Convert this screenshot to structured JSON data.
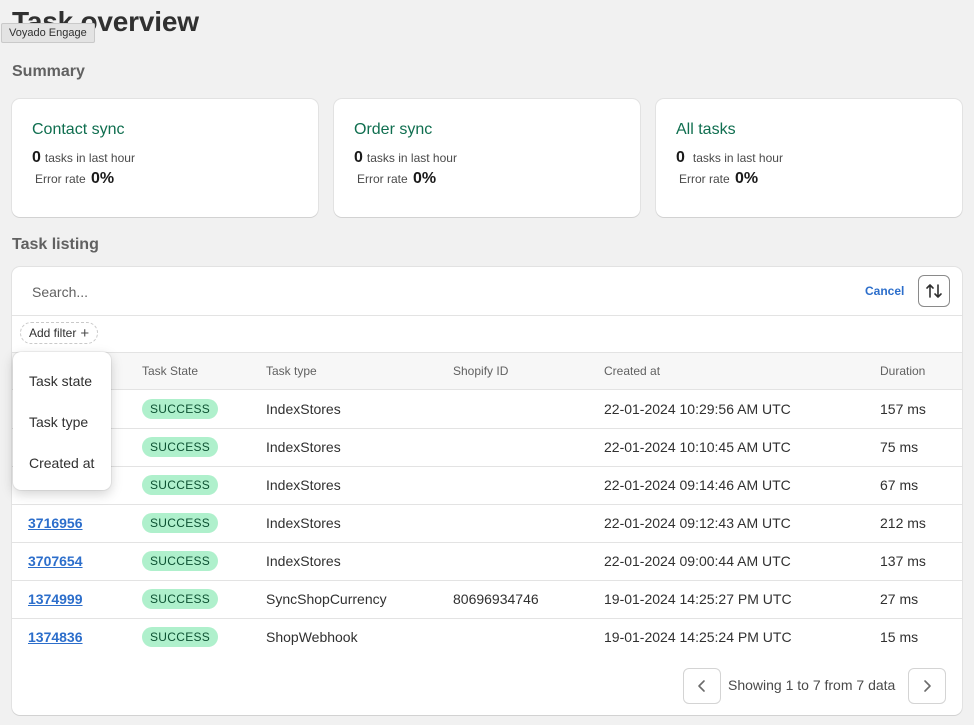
{
  "page": {
    "title": "Task overview",
    "tooltip": "Voyado Engage"
  },
  "summary": {
    "title": "Summary",
    "cards": [
      {
        "title": "Contact sync",
        "count": "0",
        "count_label": "tasks in last hour",
        "error_label": "Error rate",
        "error_value": "0%"
      },
      {
        "title": "Order sync",
        "count": "0",
        "count_label": "tasks in last hour",
        "error_label": "Error rate",
        "error_value": "0%"
      },
      {
        "title": "All tasks",
        "count": "0",
        "count_label": "tasks in last hour",
        "error_label": "Error rate",
        "error_value": "0%"
      }
    ]
  },
  "listing": {
    "title": "Task listing",
    "search_placeholder": "Search...",
    "cancel_label": "Cancel",
    "add_filter_label": "Add filter",
    "columns": {
      "state": "Task State",
      "type": "Task type",
      "shopify_id": "Shopify ID",
      "created": "Created at",
      "duration": "Duration"
    },
    "rows": [
      {
        "id": "",
        "state": "SUCCESS",
        "type": "IndexStores",
        "shopify_id": "",
        "created": "22-01-2024 10:29:56 AM UTC",
        "duration": "157 ms"
      },
      {
        "id": "",
        "state": "SUCCESS",
        "type": "IndexStores",
        "shopify_id": "",
        "created": "22-01-2024 10:10:45 AM UTC",
        "duration": "75 ms"
      },
      {
        "id": "",
        "state": "SUCCESS",
        "type": "IndexStores",
        "shopify_id": "",
        "created": "22-01-2024 09:14:46 AM UTC",
        "duration": "67 ms"
      },
      {
        "id": "3716956",
        "state": "SUCCESS",
        "type": "IndexStores",
        "shopify_id": "",
        "created": "22-01-2024 09:12:43 AM UTC",
        "duration": "212 ms"
      },
      {
        "id": "3707654",
        "state": "SUCCESS",
        "type": "IndexStores",
        "shopify_id": "",
        "created": "22-01-2024 09:00:44 AM UTC",
        "duration": "137 ms"
      },
      {
        "id": "1374999",
        "state": "SUCCESS",
        "type": "SyncShopCurrency",
        "shopify_id": "80696934746",
        "created": "19-01-2024 14:25:27 PM UTC",
        "duration": "27 ms"
      },
      {
        "id": "1374836",
        "state": "SUCCESS",
        "type": "ShopWebhook",
        "shopify_id": "",
        "created": "19-01-2024 14:25:24 PM UTC",
        "duration": "15 ms"
      }
    ],
    "pagination_text": "Showing 1 to 7 from 7 data"
  },
  "filter_menu": {
    "items": [
      "Task state",
      "Task type",
      "Created at"
    ]
  },
  "icons": {
    "sort": "sort-arrows-icon",
    "prev": "chevron-left-icon",
    "next": "chevron-right-icon",
    "plus": "plus-icon"
  },
  "colors": {
    "accent_green": "#0f6e4f",
    "link_blue": "#2c6ecb",
    "success_bg": "#aff0cc",
    "success_fg": "#0c5132"
  }
}
